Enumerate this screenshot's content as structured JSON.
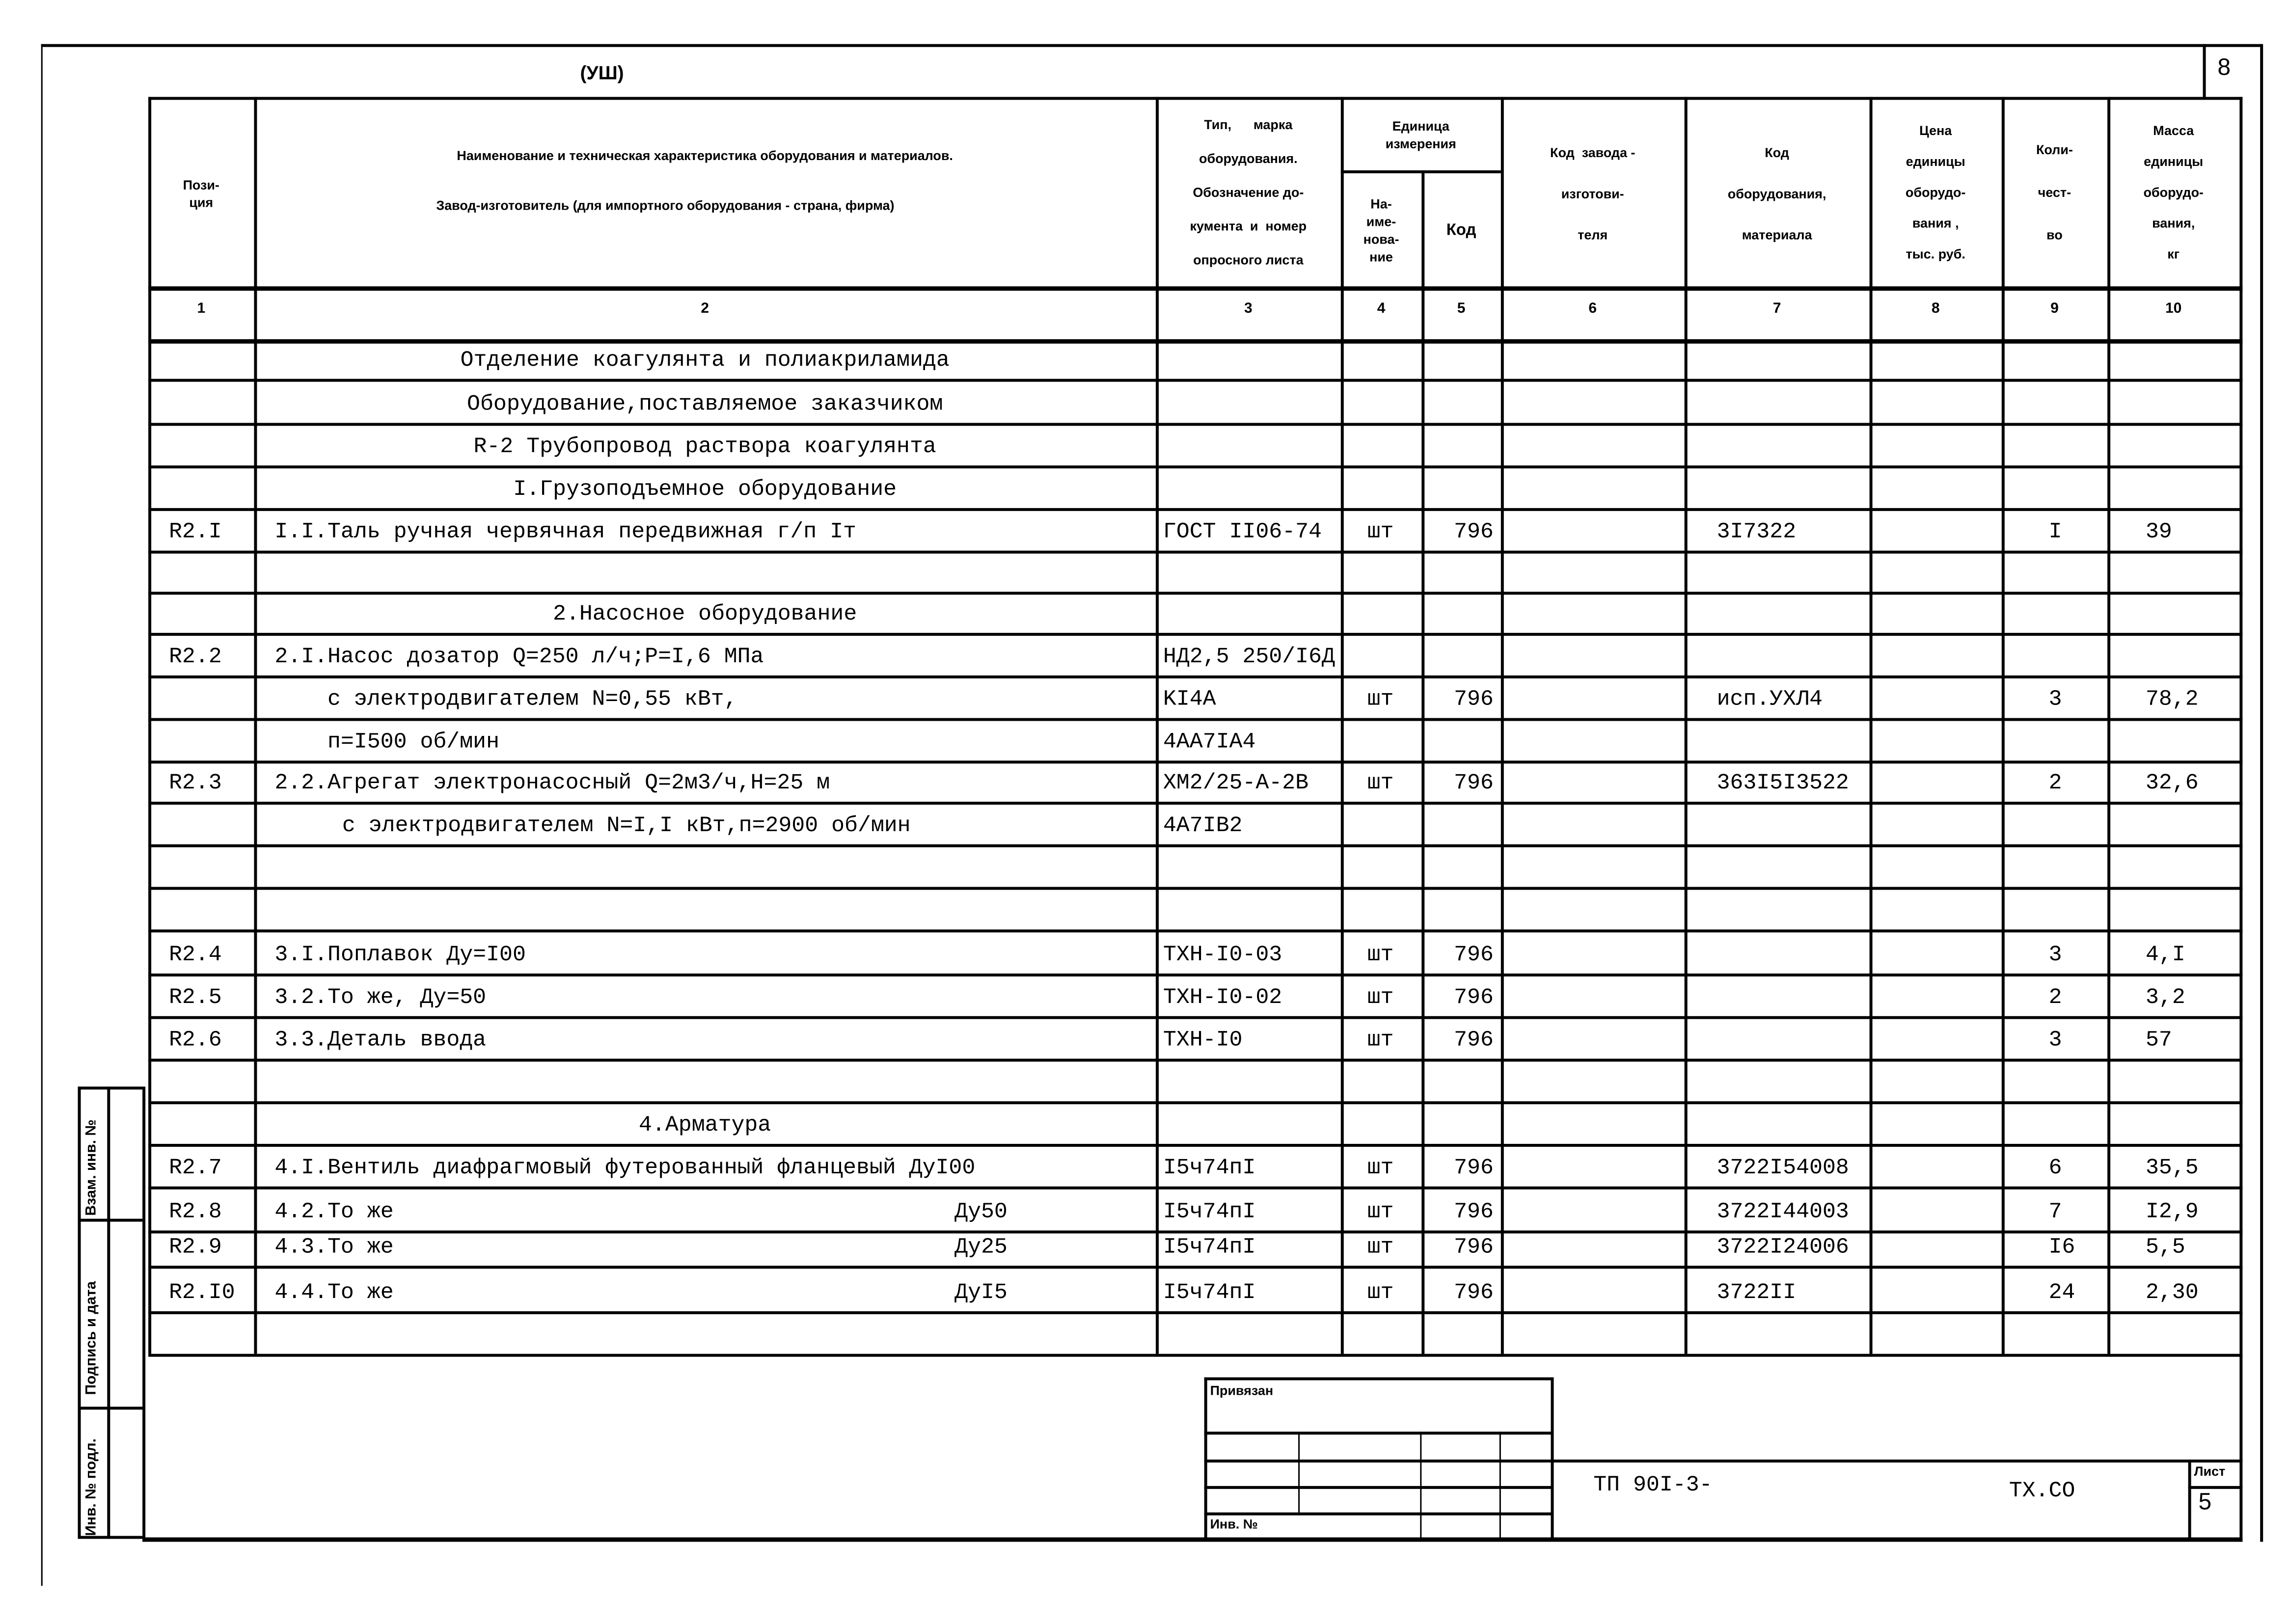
{
  "sheet": {
    "section_mark": "(УШ)",
    "corner_number": "8"
  },
  "header": {
    "col1": "Пози-\nция",
    "col2_line1": "Наименование и техническая характеристика  оборудования и материалов.",
    "col2_line2": "Завод-изготовитель  (для импортного оборудования -  страна, фирма)",
    "col3": "Тип,      марка\nоборудования.\nОбозначение до-\nкумента  и  номер\nопросного листа",
    "unit_group": "Единица\nизмерения",
    "col4": "На-\nиме-\nнова-\nние",
    "col5": "Код",
    "col6": "Код  завода -\nизготови-\nтеля",
    "col7": "Код\nоборудования,\nматериала",
    "col8": "Цена\nединицы\nоборудо-\nвания ,\nтыс. руб.",
    "col9": "Коли-\nчест-\nво",
    "col10": "Масса\nединицы\nоборудо-\nвания,\nкг",
    "numbers": [
      "1",
      "2",
      "3",
      "4",
      "5",
      "6",
      "7",
      "8",
      "9",
      "10"
    ]
  },
  "rows": [
    {
      "kind": "heading",
      "name": "Отделение коагулянта и полиакриламида"
    },
    {
      "kind": "heading",
      "name": "Оборудование,поставляемое заказчиком"
    },
    {
      "kind": "heading",
      "name": "R-2 Трубопровод раствора коагулянта"
    },
    {
      "kind": "heading",
      "name": "I.Грузоподъемное оборудование"
    },
    {
      "kind": "item",
      "pos": "R2.I",
      "name": "I.I.Таль ручная червячная передвижная г/п Iт",
      "type": "ГОСТ II06-74",
      "unit": "шт",
      "code": "796",
      "equip_code": "3I7322",
      "qty": "I",
      "mass": "39"
    },
    {
      "kind": "empty"
    },
    {
      "kind": "heading",
      "name": "2.Насосное оборудование"
    },
    {
      "kind": "item",
      "pos": "R2.2",
      "name": "2.I.Насос дозатор Q=250 л/ч;P=I,6 МПа",
      "type": "НД2,5 250/I6Д"
    },
    {
      "kind": "cont",
      "name": "с электродвигателем  N=0,55 кВт,",
      "type": "KI4A",
      "unit": "шт",
      "code": "796",
      "equip_code": "исп.УХЛ4",
      "qty": "3",
      "mass": "78,2"
    },
    {
      "kind": "cont",
      "name": "п=I500 об/мин",
      "type": "4AA7IA4"
    },
    {
      "kind": "item",
      "pos": "R2.3",
      "name": "2.2.Агрегат электронасосный Q=2м3/ч,H=25 м",
      "type": "XM2/25-A-2B",
      "unit": "шт",
      "code": "796",
      "equip_code": "363I5I3522",
      "qty": "2",
      "mass": "32,6"
    },
    {
      "kind": "cont2",
      "name": "с электродвигателем N=I,I кВт,п=2900 об/мин",
      "type": "4A7IB2"
    },
    {
      "kind": "empty"
    },
    {
      "kind": "empty"
    },
    {
      "kind": "item",
      "pos": "R2.4",
      "name": "3.I.Поплавок Ду=I00",
      "type": "ТХН-I0-03",
      "unit": "шт",
      "code": "796",
      "qty": "3",
      "mass": "4,I"
    },
    {
      "kind": "item",
      "pos": "R2.5",
      "name": "3.2.То же,  Ду=50",
      "type": "ТХН-I0-02",
      "unit": "шт",
      "code": "796",
      "qty": "2",
      "mass": "3,2"
    },
    {
      "kind": "item",
      "pos": "R2.6",
      "name": "3.3.Деталь ввода",
      "type": "ТХН-I0",
      "unit": "шт",
      "code": "796",
      "qty": "3",
      "mass": "57"
    },
    {
      "kind": "empty"
    },
    {
      "kind": "heading",
      "name": "4.Арматура"
    },
    {
      "kind": "item",
      "pos": "R2.7",
      "name": "4.I.Вентиль диафрагмовый  футерованный фланцевый ДуI00",
      "type": "I5ч74пI",
      "unit": "шт",
      "code": "796",
      "equip_code": "3722I54008",
      "qty": "6",
      "mass": "35,5"
    },
    {
      "kind": "item",
      "pos": "R2.8",
      "name": "4.2.То же",
      "dn": "Ду50",
      "type": "I5ч74пI",
      "unit": "шт",
      "code": "796",
      "equip_code": "3722I44003",
      "qty": "7",
      "mass": "I2,9"
    },
    {
      "kind": "item",
      "pos": "R2.9",
      "name": "4.3.То же",
      "dn": "Ду25",
      "type": "I5ч74пI",
      "unit": "шт",
      "code": "796",
      "equip_code": "3722I24006",
      "qty": "I6",
      "mass": "5,5"
    },
    {
      "kind": "item",
      "pos": "R2.I0",
      "name": "4.4.То же",
      "dn": "ДуI5",
      "type": "I5ч74пI",
      "unit": "шт",
      "code": "796",
      "equip_code": "3722II",
      "qty": "24",
      "mass": "2,30"
    },
    {
      "kind": "empty"
    }
  ],
  "side_stamp": {
    "field1": "Взам. инв. №",
    "field2": "Подпись и дата",
    "field3": "Инв. № подл."
  },
  "title_block": {
    "bound_label": "Привязан",
    "inv_label": "Инв. №",
    "doc_code": "ТП 90I-3-",
    "doc_mark": "ТХ.СО",
    "sheet_label": "Лист",
    "sheet_number": "5"
  }
}
